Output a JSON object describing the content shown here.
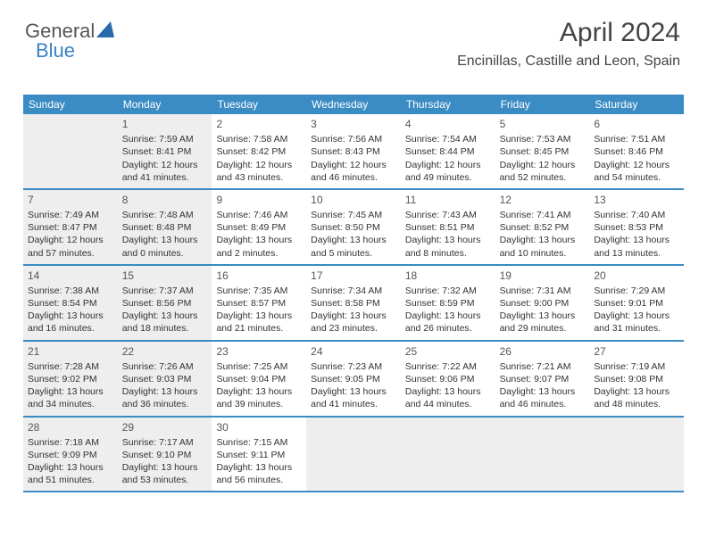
{
  "logo": {
    "general": "General",
    "blue": "Blue"
  },
  "header": {
    "title": "April 2024",
    "location": "Encinillas, Castille and Leon, Spain"
  },
  "colors": {
    "header_bg": "#3b8bc4",
    "shaded_bg": "#eeeeee",
    "text": "#333333",
    "logo_blue": "#3b82c4"
  },
  "dayNames": [
    "Sunday",
    "Monday",
    "Tuesday",
    "Wednesday",
    "Thursday",
    "Friday",
    "Saturday"
  ],
  "weeks": [
    [
      {
        "num": "",
        "shaded": true,
        "sunrise": "",
        "sunset": "",
        "daylight1": "",
        "daylight2": ""
      },
      {
        "num": "1",
        "shaded": true,
        "sunrise": "Sunrise: 7:59 AM",
        "sunset": "Sunset: 8:41 PM",
        "daylight1": "Daylight: 12 hours",
        "daylight2": "and 41 minutes."
      },
      {
        "num": "2",
        "shaded": false,
        "sunrise": "Sunrise: 7:58 AM",
        "sunset": "Sunset: 8:42 PM",
        "daylight1": "Daylight: 12 hours",
        "daylight2": "and 43 minutes."
      },
      {
        "num": "3",
        "shaded": false,
        "sunrise": "Sunrise: 7:56 AM",
        "sunset": "Sunset: 8:43 PM",
        "daylight1": "Daylight: 12 hours",
        "daylight2": "and 46 minutes."
      },
      {
        "num": "4",
        "shaded": false,
        "sunrise": "Sunrise: 7:54 AM",
        "sunset": "Sunset: 8:44 PM",
        "daylight1": "Daylight: 12 hours",
        "daylight2": "and 49 minutes."
      },
      {
        "num": "5",
        "shaded": false,
        "sunrise": "Sunrise: 7:53 AM",
        "sunset": "Sunset: 8:45 PM",
        "daylight1": "Daylight: 12 hours",
        "daylight2": "and 52 minutes."
      },
      {
        "num": "6",
        "shaded": false,
        "sunrise": "Sunrise: 7:51 AM",
        "sunset": "Sunset: 8:46 PM",
        "daylight1": "Daylight: 12 hours",
        "daylight2": "and 54 minutes."
      }
    ],
    [
      {
        "num": "7",
        "shaded": true,
        "sunrise": "Sunrise: 7:49 AM",
        "sunset": "Sunset: 8:47 PM",
        "daylight1": "Daylight: 12 hours",
        "daylight2": "and 57 minutes."
      },
      {
        "num": "8",
        "shaded": true,
        "sunrise": "Sunrise: 7:48 AM",
        "sunset": "Sunset: 8:48 PM",
        "daylight1": "Daylight: 13 hours",
        "daylight2": "and 0 minutes."
      },
      {
        "num": "9",
        "shaded": false,
        "sunrise": "Sunrise: 7:46 AM",
        "sunset": "Sunset: 8:49 PM",
        "daylight1": "Daylight: 13 hours",
        "daylight2": "and 2 minutes."
      },
      {
        "num": "10",
        "shaded": false,
        "sunrise": "Sunrise: 7:45 AM",
        "sunset": "Sunset: 8:50 PM",
        "daylight1": "Daylight: 13 hours",
        "daylight2": "and 5 minutes."
      },
      {
        "num": "11",
        "shaded": false,
        "sunrise": "Sunrise: 7:43 AM",
        "sunset": "Sunset: 8:51 PM",
        "daylight1": "Daylight: 13 hours",
        "daylight2": "and 8 minutes."
      },
      {
        "num": "12",
        "shaded": false,
        "sunrise": "Sunrise: 7:41 AM",
        "sunset": "Sunset: 8:52 PM",
        "daylight1": "Daylight: 13 hours",
        "daylight2": "and 10 minutes."
      },
      {
        "num": "13",
        "shaded": false,
        "sunrise": "Sunrise: 7:40 AM",
        "sunset": "Sunset: 8:53 PM",
        "daylight1": "Daylight: 13 hours",
        "daylight2": "and 13 minutes."
      }
    ],
    [
      {
        "num": "14",
        "shaded": true,
        "sunrise": "Sunrise: 7:38 AM",
        "sunset": "Sunset: 8:54 PM",
        "daylight1": "Daylight: 13 hours",
        "daylight2": "and 16 minutes."
      },
      {
        "num": "15",
        "shaded": true,
        "sunrise": "Sunrise: 7:37 AM",
        "sunset": "Sunset: 8:56 PM",
        "daylight1": "Daylight: 13 hours",
        "daylight2": "and 18 minutes."
      },
      {
        "num": "16",
        "shaded": false,
        "sunrise": "Sunrise: 7:35 AM",
        "sunset": "Sunset: 8:57 PM",
        "daylight1": "Daylight: 13 hours",
        "daylight2": "and 21 minutes."
      },
      {
        "num": "17",
        "shaded": false,
        "sunrise": "Sunrise: 7:34 AM",
        "sunset": "Sunset: 8:58 PM",
        "daylight1": "Daylight: 13 hours",
        "daylight2": "and 23 minutes."
      },
      {
        "num": "18",
        "shaded": false,
        "sunrise": "Sunrise: 7:32 AM",
        "sunset": "Sunset: 8:59 PM",
        "daylight1": "Daylight: 13 hours",
        "daylight2": "and 26 minutes."
      },
      {
        "num": "19",
        "shaded": false,
        "sunrise": "Sunrise: 7:31 AM",
        "sunset": "Sunset: 9:00 PM",
        "daylight1": "Daylight: 13 hours",
        "daylight2": "and 29 minutes."
      },
      {
        "num": "20",
        "shaded": false,
        "sunrise": "Sunrise: 7:29 AM",
        "sunset": "Sunset: 9:01 PM",
        "daylight1": "Daylight: 13 hours",
        "daylight2": "and 31 minutes."
      }
    ],
    [
      {
        "num": "21",
        "shaded": true,
        "sunrise": "Sunrise: 7:28 AM",
        "sunset": "Sunset: 9:02 PM",
        "daylight1": "Daylight: 13 hours",
        "daylight2": "and 34 minutes."
      },
      {
        "num": "22",
        "shaded": true,
        "sunrise": "Sunrise: 7:26 AM",
        "sunset": "Sunset: 9:03 PM",
        "daylight1": "Daylight: 13 hours",
        "daylight2": "and 36 minutes."
      },
      {
        "num": "23",
        "shaded": false,
        "sunrise": "Sunrise: 7:25 AM",
        "sunset": "Sunset: 9:04 PM",
        "daylight1": "Daylight: 13 hours",
        "daylight2": "and 39 minutes."
      },
      {
        "num": "24",
        "shaded": false,
        "sunrise": "Sunrise: 7:23 AM",
        "sunset": "Sunset: 9:05 PM",
        "daylight1": "Daylight: 13 hours",
        "daylight2": "and 41 minutes."
      },
      {
        "num": "25",
        "shaded": false,
        "sunrise": "Sunrise: 7:22 AM",
        "sunset": "Sunset: 9:06 PM",
        "daylight1": "Daylight: 13 hours",
        "daylight2": "and 44 minutes."
      },
      {
        "num": "26",
        "shaded": false,
        "sunrise": "Sunrise: 7:21 AM",
        "sunset": "Sunset: 9:07 PM",
        "daylight1": "Daylight: 13 hours",
        "daylight2": "and 46 minutes."
      },
      {
        "num": "27",
        "shaded": false,
        "sunrise": "Sunrise: 7:19 AM",
        "sunset": "Sunset: 9:08 PM",
        "daylight1": "Daylight: 13 hours",
        "daylight2": "and 48 minutes."
      }
    ],
    [
      {
        "num": "28",
        "shaded": true,
        "sunrise": "Sunrise: 7:18 AM",
        "sunset": "Sunset: 9:09 PM",
        "daylight1": "Daylight: 13 hours",
        "daylight2": "and 51 minutes."
      },
      {
        "num": "29",
        "shaded": true,
        "sunrise": "Sunrise: 7:17 AM",
        "sunset": "Sunset: 9:10 PM",
        "daylight1": "Daylight: 13 hours",
        "daylight2": "and 53 minutes."
      },
      {
        "num": "30",
        "shaded": false,
        "sunrise": "Sunrise: 7:15 AM",
        "sunset": "Sunset: 9:11 PM",
        "daylight1": "Daylight: 13 hours",
        "daylight2": "and 56 minutes."
      },
      {
        "num": "",
        "shaded": true,
        "sunrise": "",
        "sunset": "",
        "daylight1": "",
        "daylight2": ""
      },
      {
        "num": "",
        "shaded": true,
        "sunrise": "",
        "sunset": "",
        "daylight1": "",
        "daylight2": ""
      },
      {
        "num": "",
        "shaded": true,
        "sunrise": "",
        "sunset": "",
        "daylight1": "",
        "daylight2": ""
      },
      {
        "num": "",
        "shaded": true,
        "sunrise": "",
        "sunset": "",
        "daylight1": "",
        "daylight2": ""
      }
    ]
  ]
}
